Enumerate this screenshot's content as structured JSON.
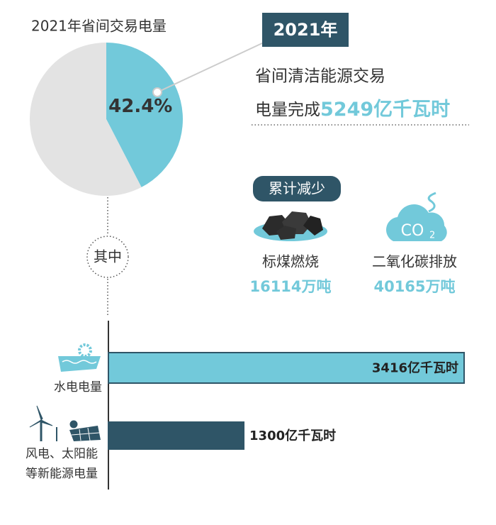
{
  "chart_data": [
    {
      "type": "pie",
      "title": "2021年省间交易电量",
      "values": [
        42.4,
        57.6
      ],
      "value_labels": [
        "42.4%",
        null
      ],
      "colors": [
        "#72c9da",
        "#e3e3e3"
      ]
    },
    {
      "type": "bar",
      "orientation": "horizontal",
      "categories": [
        "水电电量",
        "风电、太阳能等新能源电量"
      ],
      "values": [
        3416,
        1300
      ],
      "value_labels": [
        "3416亿千瓦时",
        "1300亿千瓦时"
      ],
      "colors": [
        "#72c9da",
        "#2f5567"
      ]
    }
  ],
  "callout": {
    "year": "2021年",
    "line1": "省间清洁能源交易",
    "line2": "电量完成",
    "amount": "5249亿千瓦时"
  },
  "reduction": {
    "title": "累计减少",
    "items": [
      {
        "label": "标煤燃烧",
        "amount": "16114万吨"
      },
      {
        "label": "二氧化碳排放",
        "amount": "40165万吨"
      }
    ],
    "icon_text": "CO",
    "icon_sub": "2"
  },
  "breakdown_label": "其中"
}
